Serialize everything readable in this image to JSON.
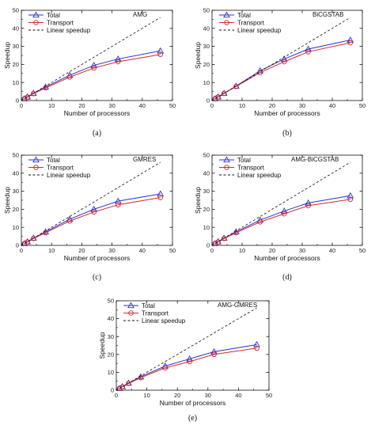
{
  "chart_data": [
    {
      "type": "line",
      "panel_label": "(a)",
      "method": "AMG",
      "xlabel": "Number of processors",
      "ylabel": "Speedup",
      "xlim": [
        0,
        50
      ],
      "ylim": [
        0,
        50
      ],
      "xticks": [
        0,
        10,
        20,
        30,
        40,
        50
      ],
      "yticks": [
        0,
        10,
        20,
        30,
        40,
        50
      ],
      "legend_position": "top-left",
      "series": [
        {
          "name": "Total",
          "color": "#2b2fd0",
          "marker": "triangle",
          "x": [
            1,
            2,
            4,
            8,
            16,
            24,
            32,
            46
          ],
          "y": [
            1,
            2,
            4,
            7.5,
            14,
            19.5,
            23,
            27.5
          ]
        },
        {
          "name": "Transport",
          "color": "#d42a2a",
          "marker": "circle",
          "x": [
            1,
            2,
            4,
            8,
            16,
            24,
            32,
            46
          ],
          "y": [
            1,
            1.9,
            3.8,
            7,
            13,
            18,
            21.5,
            25.5
          ]
        },
        {
          "name": "Linear speedup",
          "color": "#111111",
          "dashed": true,
          "x": [
            0,
            46
          ],
          "y": [
            0,
            46
          ]
        }
      ]
    },
    {
      "type": "line",
      "panel_label": "(b)",
      "method": "BiCGSTAB",
      "xlabel": "Number of processors",
      "ylabel": "Speedup",
      "xlim": [
        0,
        50
      ],
      "ylim": [
        0,
        50
      ],
      "xticks": [
        0,
        10,
        20,
        30,
        40,
        50
      ],
      "yticks": [
        0,
        10,
        20,
        30,
        40,
        50
      ],
      "legend_position": "top-left",
      "series": [
        {
          "name": "Total",
          "color": "#2b2fd0",
          "marker": "triangle",
          "x": [
            1,
            2,
            4,
            8,
            16,
            24,
            32,
            46
          ],
          "y": [
            1,
            2,
            4,
            8,
            16.5,
            23,
            28.5,
            33.5
          ]
        },
        {
          "name": "Transport",
          "color": "#d42a2a",
          "marker": "circle",
          "x": [
            1,
            2,
            4,
            8,
            16,
            24,
            32,
            46
          ],
          "y": [
            1,
            2,
            3.9,
            7.8,
            15.5,
            21.5,
            27,
            32
          ]
        },
        {
          "name": "Linear speedup",
          "color": "#111111",
          "dashed": true,
          "x": [
            0,
            46
          ],
          "y": [
            0,
            46
          ]
        }
      ]
    },
    {
      "type": "line",
      "panel_label": "(c)",
      "method": "GMRES",
      "xlabel": "Number of processors",
      "ylabel": "Speedup",
      "xlim": [
        0,
        50
      ],
      "ylim": [
        0,
        50
      ],
      "xticks": [
        0,
        10,
        20,
        30,
        40,
        50
      ],
      "yticks": [
        0,
        10,
        20,
        30,
        40,
        50
      ],
      "legend_position": "top-left",
      "series": [
        {
          "name": "Total",
          "color": "#2b2fd0",
          "marker": "triangle",
          "x": [
            1,
            2,
            4,
            8,
            16,
            24,
            32,
            46
          ],
          "y": [
            1,
            2,
            4,
            7.5,
            14.5,
            20,
            24.5,
            28.5
          ]
        },
        {
          "name": "Transport",
          "color": "#d42a2a",
          "marker": "circle",
          "x": [
            1,
            2,
            4,
            8,
            16,
            24,
            32,
            46
          ],
          "y": [
            1,
            1.9,
            3.8,
            7,
            13.5,
            18.5,
            22.5,
            26.5
          ]
        },
        {
          "name": "Linear speedup",
          "color": "#111111",
          "dashed": true,
          "x": [
            0,
            46
          ],
          "y": [
            0,
            46
          ]
        }
      ]
    },
    {
      "type": "line",
      "panel_label": "(d)",
      "method": "AMG-BiCGSTAB",
      "xlabel": "Number of processors",
      "ylabel": "Speedup",
      "xlim": [
        0,
        50
      ],
      "ylim": [
        0,
        50
      ],
      "xticks": [
        0,
        10,
        20,
        30,
        40,
        50
      ],
      "yticks": [
        0,
        10,
        20,
        30,
        40,
        50
      ],
      "legend_position": "top-left",
      "series": [
        {
          "name": "Total",
          "color": "#2b2fd0",
          "marker": "triangle",
          "x": [
            1,
            2,
            4,
            8,
            16,
            24,
            32,
            46
          ],
          "y": [
            1,
            2,
            4,
            7.5,
            14,
            19,
            23.5,
            27.5
          ]
        },
        {
          "name": "Transport",
          "color": "#d42a2a",
          "marker": "circle",
          "x": [
            1,
            2,
            4,
            8,
            16,
            24,
            32,
            46
          ],
          "y": [
            1,
            1.9,
            3.8,
            7,
            13,
            17.5,
            22,
            25.5
          ]
        },
        {
          "name": "Linear speedup",
          "color": "#111111",
          "dashed": true,
          "x": [
            0,
            46
          ],
          "y": [
            0,
            46
          ]
        }
      ]
    },
    {
      "type": "line",
      "panel_label": "(e)",
      "method": "AMG-GMRES",
      "xlabel": "Number of processors",
      "ylabel": "Speedup",
      "xlim": [
        0,
        50
      ],
      "ylim": [
        0,
        50
      ],
      "xticks": [
        0,
        10,
        20,
        30,
        40,
        50
      ],
      "yticks": [
        0,
        10,
        20,
        30,
        40,
        50
      ],
      "legend_position": "top-left",
      "series": [
        {
          "name": "Total",
          "color": "#2b2fd0",
          "marker": "triangle",
          "x": [
            1,
            2,
            4,
            8,
            16,
            24,
            32,
            46
          ],
          "y": [
            1,
            2,
            4,
            7.5,
            13.5,
            17.5,
            21.5,
            25.5
          ]
        },
        {
          "name": "Transport",
          "color": "#d42a2a",
          "marker": "circle",
          "x": [
            1,
            2,
            4,
            8,
            16,
            24,
            32,
            46
          ],
          "y": [
            1,
            1.9,
            3.8,
            7,
            12.5,
            16,
            20,
            23.5
          ]
        },
        {
          "name": "Linear speedup",
          "color": "#111111",
          "dashed": true,
          "x": [
            0,
            46
          ],
          "y": [
            0,
            46
          ]
        }
      ]
    }
  ]
}
